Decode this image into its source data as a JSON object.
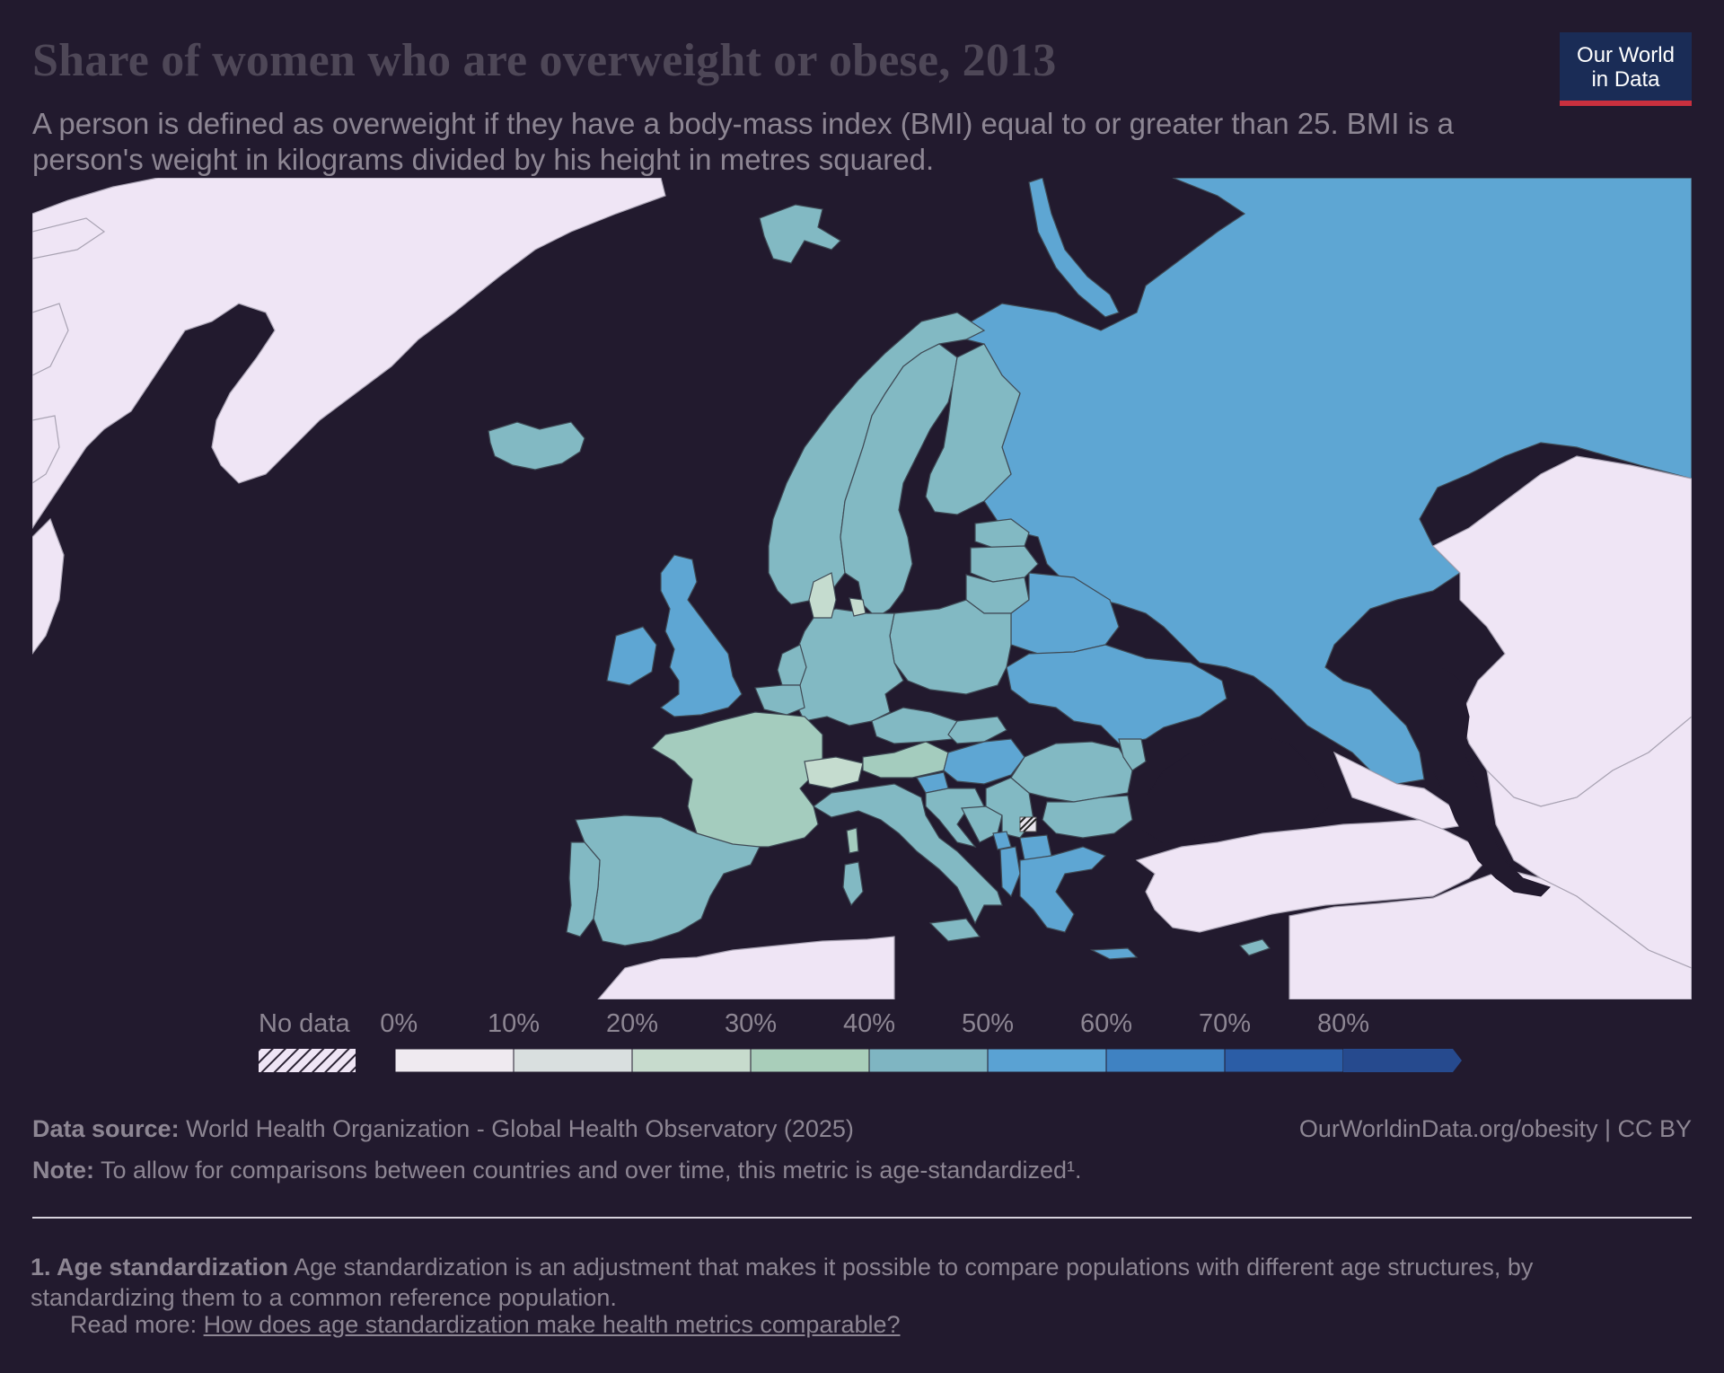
{
  "header": {
    "title": "Share of women who are overweight or obese, 2013",
    "subtitle": "A person is defined as overweight if they have a body-mass index (BMI) equal to or greater than 25. BMI is a person's weight in kilograms divided by his height in metres squared."
  },
  "logo": {
    "line1": "Our World",
    "line2": "in Data"
  },
  "legend": {
    "nodata_label": "No data",
    "ticks": [
      "0%",
      "10%",
      "20%",
      "30%",
      "40%",
      "50%",
      "60%",
      "70%",
      "80%"
    ],
    "colors": [
      "#efeaf0",
      "#d9dfdf",
      "#c7dbcd",
      "#a9ceba",
      "#7fb5c2",
      "#5aa2d3",
      "#3f82c2",
      "#2b5da6",
      "#264a8e"
    ]
  },
  "map": {
    "colors": {
      "ocean": "#221a2e",
      "nodata": "#efe5f5",
      "bin_40_50": "#82b9c3",
      "bin_50_60": "#5ea6d3",
      "bin_30_40": "#a4ccbe",
      "bin_20_30": "#c5dccf"
    }
  },
  "footer": {
    "source_label": "Data source:",
    "source_text": "World Health Organization - Global Health Observatory (2025)",
    "url_text": "OurWorldinData.org/obesity | CC BY",
    "note_label": "Note:",
    "note_text": "To allow for comparisons between countries and over time, this metric is age-standardized¹."
  },
  "footnote": {
    "label": "1. Age standardization",
    "text": "Age standardization is an adjustment that makes it possible to compare populations with different age structures, by standardizing them to a common reference population.",
    "readmore_prefix": "Read more:",
    "readmore_link": "How does age standardization make health metrics comparable?"
  }
}
